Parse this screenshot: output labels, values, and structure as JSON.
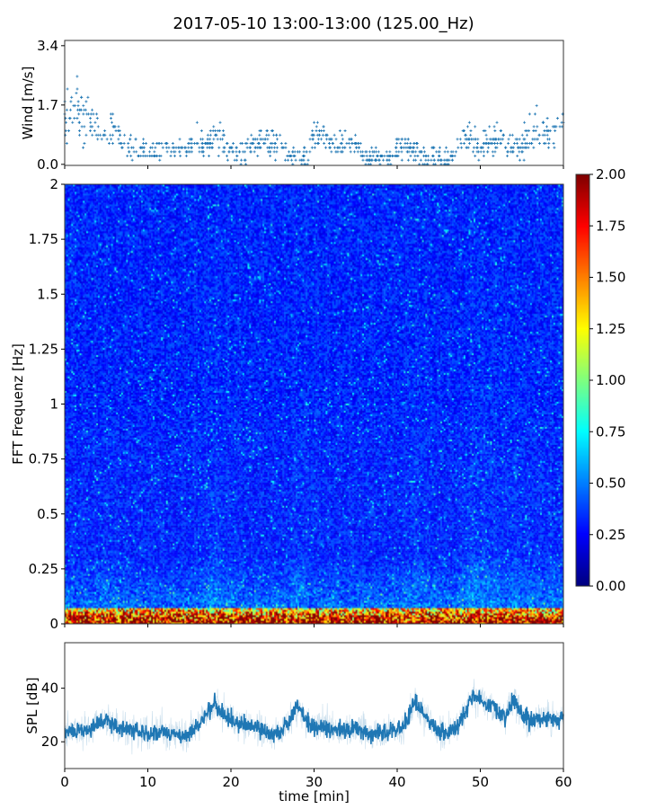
{
  "title": "2017-05-10 13:00-13:00 (125.00_Hz)",
  "colors": {
    "series": "#1f77b4",
    "axis": "#333333"
  },
  "chart_data": [
    {
      "type": "scatter",
      "name": "wind",
      "ylabel": "Wind [m/s]",
      "xlim": [
        0,
        60
      ],
      "ylim": [
        -0.03,
        3.55
      ],
      "yticks": [
        0.0,
        1.7,
        3.4
      ],
      "ytick_labels": [
        "0.0",
        "1.7",
        "3.4"
      ],
      "xticks": [
        0,
        10,
        20,
        30,
        40,
        50,
        60
      ],
      "x_minutes": [
        0,
        1,
        2,
        3,
        4,
        5,
        6,
        7,
        8,
        9,
        10,
        11,
        12,
        13,
        14,
        15,
        16,
        17,
        18,
        19,
        20,
        21,
        22,
        23,
        24,
        25,
        26,
        27,
        28,
        29,
        30,
        31,
        32,
        33,
        34,
        35,
        36,
        37,
        38,
        39,
        40,
        41,
        42,
        43,
        44,
        45,
        46,
        47,
        48,
        49,
        50,
        51,
        52,
        53,
        54,
        55,
        56,
        57,
        58,
        59,
        60
      ],
      "values_per_minute_mean": [
        1.3,
        1.5,
        1.6,
        1.2,
        1.1,
        1.1,
        1.0,
        0.7,
        0.5,
        0.4,
        0.4,
        0.4,
        0.5,
        0.5,
        0.5,
        0.4,
        0.6,
        0.5,
        0.9,
        0.6,
        0.4,
        0.3,
        0.5,
        0.6,
        0.7,
        0.5,
        0.5,
        0.2,
        0.2,
        0.3,
        0.8,
        0.9,
        0.6,
        0.5,
        0.6,
        0.6,
        0.2,
        0.2,
        0.2,
        0.2,
        0.4,
        0.5,
        0.4,
        0.2,
        0.2,
        0.2,
        0.3,
        0.3,
        0.8,
        0.6,
        0.5,
        0.6,
        0.7,
        0.6,
        0.5,
        0.5,
        0.9,
        1.0,
        0.8,
        0.9,
        1.1
      ],
      "max_value": 3.4
    },
    {
      "type": "heatmap",
      "name": "spectrogram",
      "ylabel": "FFT Frequenz [Hz]",
      "xlim": [
        0,
        60
      ],
      "ylim": [
        0,
        2
      ],
      "yticks": [
        0,
        0.25,
        0.5,
        0.75,
        1,
        1.25,
        1.5,
        1.75,
        2
      ],
      "ytick_labels": [
        "0",
        "0.25",
        "0.5",
        "0.75",
        "1",
        "1.25",
        "1.5",
        "1.75",
        "2"
      ],
      "colormap": "jet",
      "clim": [
        0,
        2
      ],
      "colorbar_ticks": [
        "0.00",
        "0.25",
        "0.50",
        "0.75",
        "1.00",
        "1.25",
        "1.50",
        "1.75",
        "2.00"
      ],
      "typical_value": 0.3,
      "lowfreq_value": 1.4
    },
    {
      "type": "line",
      "name": "spl",
      "ylabel": "SPL [dB]",
      "xlabel": "time [min]",
      "xlim": [
        0,
        60
      ],
      "ylim": [
        10,
        57
      ],
      "yticks": [
        20,
        40
      ],
      "ytick_labels": [
        "20",
        "40"
      ],
      "xticks": [
        0,
        10,
        20,
        30,
        40,
        50,
        60
      ],
      "xtick_labels": [
        "0",
        "10",
        "20",
        "30",
        "40",
        "50",
        "60"
      ],
      "x_minutes": [
        0,
        1,
        2,
        3,
        4,
        5,
        6,
        7,
        8,
        9,
        10,
        11,
        12,
        13,
        14,
        15,
        16,
        17,
        18,
        19,
        20,
        21,
        22,
        23,
        24,
        25,
        26,
        27,
        28,
        29,
        30,
        31,
        32,
        33,
        34,
        35,
        36,
        37,
        38,
        39,
        40,
        41,
        42,
        43,
        44,
        45,
        46,
        47,
        48,
        49,
        50,
        51,
        52,
        53,
        54,
        55,
        56,
        57,
        58,
        59,
        60
      ],
      "values_per_minute_mean": [
        23,
        24,
        24,
        25,
        27,
        28,
        26,
        24,
        25,
        24,
        23,
        24,
        24,
        23,
        22,
        23,
        26,
        31,
        34,
        30,
        28,
        27,
        26,
        25,
        24,
        23,
        24,
        27,
        34,
        28,
        25,
        26,
        25,
        25,
        24,
        25,
        24,
        22,
        23,
        24,
        24,
        27,
        35,
        31,
        27,
        24,
        23,
        25,
        30,
        37,
        36,
        34,
        32,
        29,
        36,
        30,
        28,
        29,
        29,
        28,
        29
      ]
    }
  ]
}
